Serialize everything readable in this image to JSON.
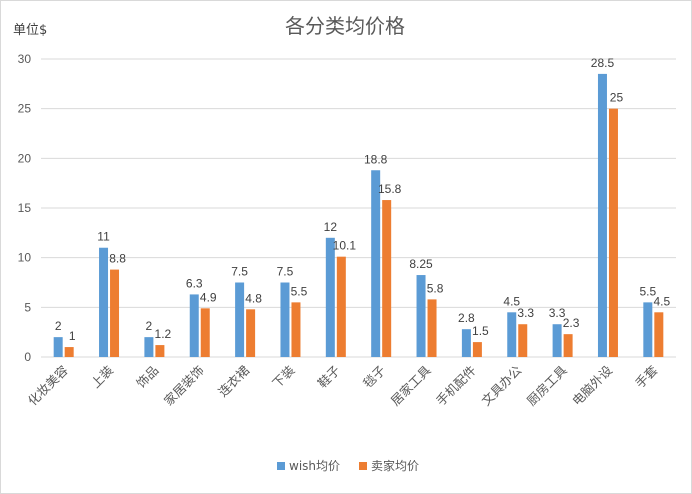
{
  "chart_data": {
    "type": "bar",
    "title": "各分类均价格",
    "ylabel": "单位$",
    "xlabel": "",
    "ylim": [
      0,
      30
    ],
    "yticks": [
      0,
      5,
      10,
      15,
      20,
      25,
      30
    ],
    "grid": true,
    "legend_position": "bottom",
    "categories": [
      "化妆美容",
      "上装",
      "饰品",
      "家居装饰",
      "连衣裙",
      "下装",
      "鞋子",
      "毯子",
      "居家工具",
      "手机配件",
      "文具办公",
      "厨房工具",
      "电脑外设",
      "手套"
    ],
    "series": [
      {
        "name": "wish均价",
        "color": "#5b9bd5",
        "values": [
          2,
          11,
          2,
          6.3,
          7.5,
          7.5,
          12,
          18.8,
          8.25,
          2.8,
          4.5,
          3.3,
          28.5,
          5.5
        ],
        "labels": [
          "2",
          "11",
          "2",
          "6.3",
          "7.5",
          "7.5",
          "12",
          "18.8",
          "8.25",
          "2.8",
          "4.5",
          "3.3",
          "28.5",
          "5.5"
        ]
      },
      {
        "name": "卖家均价",
        "color": "#ed7d31",
        "values": [
          1,
          8.8,
          1.2,
          4.9,
          4.8,
          5.5,
          10.1,
          15.8,
          5.8,
          1.5,
          3.3,
          2.3,
          25,
          4.5
        ],
        "labels": [
          "1",
          "8.8",
          "1.2",
          "4.9",
          "4.8",
          "5.5",
          "10.1",
          "15.8",
          "5.8",
          "1.5",
          "3.3",
          "2.3",
          "25",
          "4.5"
        ]
      }
    ]
  }
}
